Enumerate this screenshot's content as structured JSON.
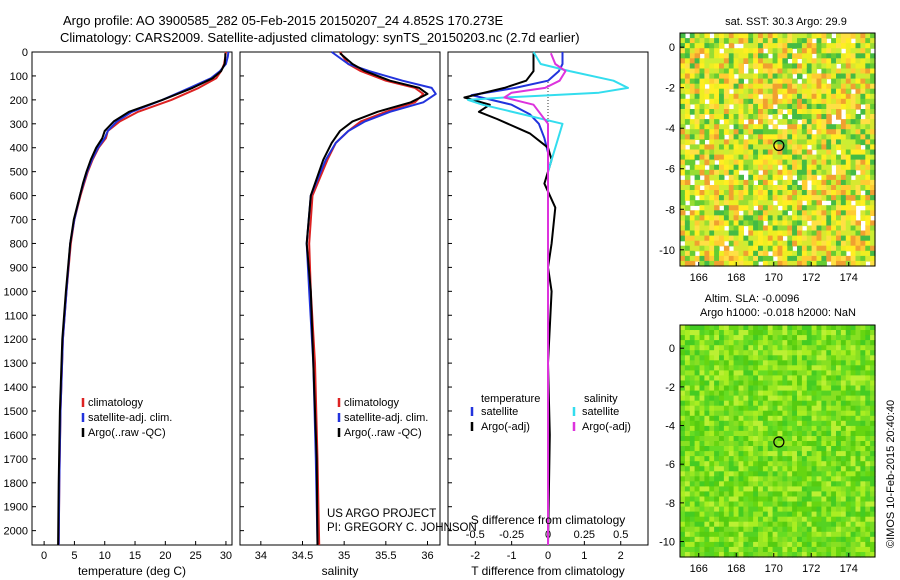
{
  "header": {
    "line1": "Argo profile: AO 3900585_282 05-Feb-2015 20150207_24 4.852S 170.273E",
    "line2": "Climatology: CARS2009. Satellite-adjusted climatology: synTS_20150203.nc (2.7d earlier)"
  },
  "credits": {
    "project": "US ARGO PROJECT",
    "pi": "PI: GREGORY C. JOHNSON",
    "imos": "©IMOS 10-Feb-2015 20:40:40"
  },
  "colors": {
    "climatology": "#dd2222",
    "satellite_adj": "#2233dd",
    "argo": "#000000",
    "s_satellite": "#33ddee",
    "s_argo": "#dd33dd"
  },
  "map_titles": {
    "sst": "sat. SST: 30.3 Argo: 29.9",
    "sla_line1": "Altim. SLA: -0.0096",
    "sla_line2": "Argo h1000: -0.018 h2000: NaN"
  },
  "depth_ticks": [
    "0",
    "100",
    "200",
    "300",
    "400",
    "500",
    "600",
    "700",
    "800",
    "900",
    "1000",
    "1100",
    "1200",
    "1300",
    "1400",
    "1500",
    "1600",
    "1700",
    "1800",
    "1900",
    "2000"
  ],
  "chart_data": [
    {
      "type": "line",
      "panel": "temperature",
      "xlabel": "temperature (deg C)",
      "ylabel": "depth",
      "xlim": [
        -2,
        31
      ],
      "ylim": [
        2060,
        0
      ],
      "xticks": [
        "0",
        "5",
        "10",
        "15",
        "20",
        "25",
        "30"
      ],
      "legend": {
        "position": "bottom-left",
        "entries": [
          {
            "label": "climatology",
            "color": "#dd2222"
          },
          {
            "label": "satellite-adj. clim.",
            "color": "#2233dd"
          },
          {
            "label": "Argo(..raw -QC)",
            "color": "#000000"
          }
        ]
      },
      "series": [
        {
          "name": "climatology",
          "color": "#dd2222",
          "x": [
            30.0,
            29.9,
            29.7,
            29.2,
            28.4,
            25.5,
            21.0,
            15.5,
            12.5,
            10.5,
            10.2,
            9.0,
            8.0,
            7.2,
            6.6,
            6.0,
            5.0,
            4.4,
            3.7,
            3.1,
            2.7,
            2.5,
            2.4
          ],
          "y": [
            0,
            20,
            50,
            80,
            110,
            150,
            200,
            250,
            290,
            330,
            360,
            400,
            450,
            500,
            550,
            600,
            700,
            800,
            1000,
            1200,
            1500,
            1800,
            2060
          ]
        },
        {
          "name": "satellite-adj. clim.",
          "color": "#2233dd",
          "x": [
            30.4,
            30.3,
            30.0,
            29.0,
            27.5,
            24.0,
            19.5,
            14.5,
            12.0,
            10.5,
            10.0,
            8.9,
            7.9,
            7.1,
            6.5,
            5.9,
            5.0,
            4.3,
            3.7,
            3.1,
            2.7,
            2.5,
            2.4
          ],
          "y": [
            0,
            20,
            50,
            80,
            110,
            150,
            200,
            250,
            290,
            330,
            360,
            400,
            450,
            500,
            550,
            600,
            700,
            800,
            1000,
            1200,
            1500,
            1800,
            2060
          ]
        },
        {
          "name": "Argo(..raw -QC)",
          "color": "#000000",
          "x": [
            29.9,
            29.9,
            29.8,
            29.2,
            27.8,
            24.5,
            19.5,
            14.0,
            11.5,
            10.0,
            9.6,
            8.6,
            7.7,
            7.0,
            6.4,
            5.9,
            4.9,
            4.3,
            3.6,
            3.0,
            2.6,
            2.4,
            2.3
          ],
          "y": [
            5,
            20,
            50,
            80,
            110,
            150,
            200,
            250,
            290,
            330,
            360,
            400,
            450,
            500,
            550,
            600,
            700,
            800,
            1000,
            1200,
            1500,
            1800,
            2060
          ]
        }
      ]
    },
    {
      "type": "line",
      "panel": "salinity",
      "xlabel": "salinity",
      "xlim": [
        33.75,
        36.15
      ],
      "ylim": [
        2060,
        0
      ],
      "xticks": [
        "34",
        "34.5",
        "35",
        "35.5",
        "36"
      ],
      "legend": {
        "position": "bottom-left",
        "entries": [
          {
            "label": "climatology",
            "color": "#dd2222"
          },
          {
            "label": "satellite-adj. clim.",
            "color": "#2233dd"
          },
          {
            "label": "Argo(..raw -QC)",
            "color": "#000000"
          }
        ]
      },
      "series": [
        {
          "name": "climatology",
          "color": "#dd2222",
          "x": [
            34.95,
            35.05,
            35.2,
            35.5,
            35.85,
            35.95,
            35.85,
            35.5,
            35.2,
            35.05,
            34.9,
            34.8,
            34.62,
            34.58,
            34.6,
            34.65,
            34.68,
            34.7
          ],
          "y": [
            0,
            50,
            80,
            120,
            150,
            175,
            210,
            250,
            290,
            330,
            380,
            450,
            600,
            800,
            1000,
            1300,
            1700,
            2060
          ]
        },
        {
          "name": "satellite-adj. clim.",
          "color": "#2233dd",
          "x": [
            34.85,
            35.05,
            35.3,
            35.7,
            36.05,
            36.1,
            35.95,
            35.55,
            35.25,
            35.05,
            34.9,
            34.78,
            34.6,
            34.55,
            34.58,
            34.63,
            34.66,
            34.68
          ],
          "y": [
            0,
            50,
            80,
            120,
            150,
            175,
            210,
            250,
            290,
            330,
            380,
            450,
            600,
            800,
            1000,
            1300,
            1700,
            2060
          ]
        },
        {
          "name": "Argo(..raw -QC)",
          "color": "#000000",
          "x": [
            34.95,
            35.1,
            35.25,
            35.55,
            35.9,
            36.0,
            35.8,
            35.4,
            35.1,
            34.95,
            34.85,
            34.75,
            34.6,
            34.55,
            34.6,
            34.63,
            34.67,
            34.68
          ],
          "y": [
            5,
            50,
            80,
            120,
            150,
            175,
            210,
            250,
            290,
            330,
            380,
            450,
            600,
            800,
            1000,
            1300,
            1700,
            2060
          ]
        }
      ]
    },
    {
      "type": "line",
      "panel": "difference",
      "xlabel": "T difference from climatology",
      "xlabel_top": "S difference from climatology",
      "xlim": [
        -2.75,
        2.75
      ],
      "ylim": [
        2060,
        0
      ],
      "xticks": [
        "-2",
        "-1",
        "0",
        "1",
        "2"
      ],
      "xticks_top": [
        "-0.5",
        "-0.25",
        "0",
        "0.25",
        "0.5"
      ],
      "legend": {
        "position": "bottom",
        "temperature_title": "temperature",
        "salinity_title": "salinity",
        "entries": [
          {
            "label": "satellite",
            "color": "#2233dd",
            "group": "temperature"
          },
          {
            "label": "Argo(-adj)",
            "color": "#000000",
            "group": "temperature"
          },
          {
            "label": "satellite",
            "color": "#33ddee",
            "group": "salinity"
          },
          {
            "label": "Argo(-adj)",
            "color": "#dd33dd",
            "group": "salinity"
          }
        ]
      },
      "series": [
        {
          "name": "T satellite",
          "color": "#2233dd",
          "x": [
            0.4,
            0.4,
            0.3,
            0.0,
            -0.9,
            -2.1,
            -1.0,
            -0.5,
            -0.25,
            -0.1,
            0.0,
            0.0,
            0.0,
            0.0,
            0.0,
            0.0
          ],
          "y": [
            0,
            50,
            80,
            120,
            150,
            180,
            220,
            260,
            300,
            360,
            420,
            500,
            700,
            1000,
            1500,
            2060
          ]
        },
        {
          "name": "T Argo(-adj)",
          "color": "#000000",
          "x": [
            -0.4,
            -0.4,
            -0.4,
            -0.6,
            -1.2,
            -2.3,
            -1.6,
            -1.9,
            -1.4,
            -0.5,
            0.0,
            0.1,
            -0.1,
            0.2,
            0.1,
            0.0,
            0.1,
            0.0,
            0.05,
            0.0
          ],
          "y": [
            5,
            50,
            80,
            120,
            150,
            190,
            220,
            250,
            280,
            340,
            400,
            450,
            550,
            650,
            800,
            900,
            1000,
            1300,
            1600,
            2060
          ]
        },
        {
          "name": "S satellite",
          "color": "#33ddee",
          "x": [
            -0.1,
            -0.05,
            0.15,
            0.45,
            0.55,
            0.35,
            -0.3,
            -0.55,
            -0.45,
            0.1,
            0.05,
            0.0,
            0.0,
            0.0,
            0.0
          ],
          "y": [
            0,
            50,
            80,
            120,
            150,
            170,
            190,
            200,
            220,
            300,
            400,
            500,
            800,
            1200,
            2060
          ]
        },
        {
          "name": "S Argo(-adj)",
          "color": "#dd33dd",
          "x": [
            0.02,
            0.05,
            0.12,
            0.08,
            -0.02,
            -0.25,
            -0.3,
            -0.1,
            0.0,
            0.0,
            0.0
          ],
          "y": [
            5,
            50,
            80,
            120,
            150,
            170,
            190,
            220,
            300,
            800,
            2060
          ]
        }
      ]
    },
    {
      "type": "heatmap",
      "panel": "sst-map",
      "title": "sat. SST: 30.3 Argo: 29.9",
      "xlim": [
        165,
        175.4
      ],
      "ylim": [
        -10.8,
        0.7
      ],
      "xticks": [
        "166",
        "168",
        "170",
        "172",
        "174"
      ],
      "yticks": [
        "0",
        "-2",
        "-4",
        "-6",
        "-8",
        "-10"
      ],
      "marker": {
        "lon": 170.273,
        "lat": -4.852
      }
    },
    {
      "type": "heatmap",
      "panel": "sla-map",
      "xlim": [
        165,
        175.4
      ],
      "ylim": [
        -10.8,
        1.2
      ],
      "xticks": [
        "166",
        "168",
        "170",
        "172",
        "174"
      ],
      "yticks": [
        "0",
        "-2",
        "-4",
        "-6",
        "-8",
        "-10"
      ],
      "marker": {
        "lon": 170.273,
        "lat": -4.852
      }
    }
  ]
}
